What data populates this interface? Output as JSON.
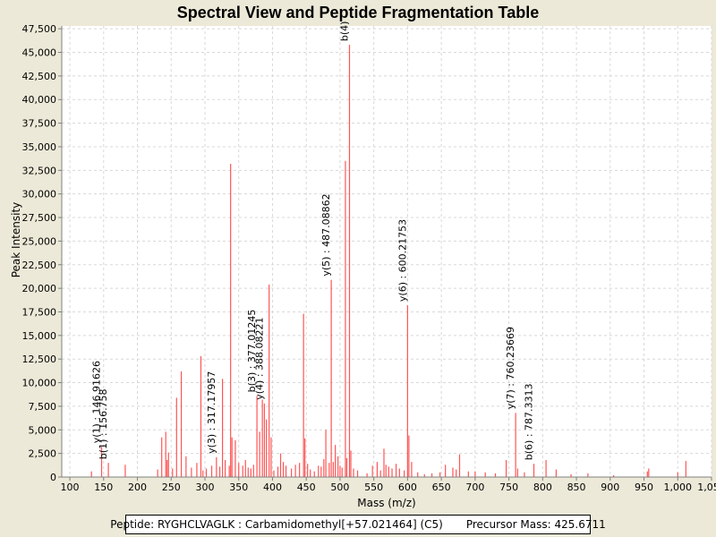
{
  "chart_data": {
    "type": "bar",
    "title": "Spectral View and Peptide Fragmentation Table",
    "xlabel": "Mass (m/z)",
    "ylabel": "Peak Intensity",
    "xlim": [
      88,
      1050
    ],
    "ylim": [
      0,
      47800
    ],
    "x_ticks": [
      100,
      150,
      200,
      250,
      300,
      350,
      400,
      450,
      500,
      550,
      600,
      650,
      700,
      750,
      800,
      850,
      900,
      950,
      1000,
      1050
    ],
    "x_tick_labels": [
      "100",
      "150",
      "200",
      "250",
      "300",
      "350",
      "400",
      "450",
      "500",
      "550",
      "600",
      "650",
      "700",
      "750",
      "800",
      "850",
      "900",
      "950",
      "1,000",
      "1,050"
    ],
    "y_ticks": [
      0,
      2500,
      5000,
      7500,
      10000,
      12500,
      15000,
      17500,
      20000,
      22500,
      25000,
      27500,
      30000,
      32500,
      35000,
      37500,
      40000,
      42500,
      45000,
      47500
    ],
    "y_tick_labels": [
      "0",
      "2,500",
      "5,000",
      "7,500",
      "10,000",
      "12,500",
      "15,000",
      "17,500",
      "20,000",
      "22,500",
      "25,000",
      "27,500",
      "30,000",
      "32,500",
      "35,000",
      "37,500",
      "40,000",
      "42,500",
      "45,000",
      "47,500"
    ],
    "grid": true,
    "peak_color": "#ff5555",
    "peaks": [
      {
        "x": 132,
        "y": 600
      },
      {
        "x": 147,
        "y": 3200
      },
      {
        "x": 157,
        "y": 1500
      },
      {
        "x": 182,
        "y": 1300
      },
      {
        "x": 230,
        "y": 800
      },
      {
        "x": 236,
        "y": 4200
      },
      {
        "x": 242,
        "y": 4800
      },
      {
        "x": 244,
        "y": 1800
      },
      {
        "x": 246,
        "y": 2600
      },
      {
        "x": 252,
        "y": 900
      },
      {
        "x": 258,
        "y": 8400
      },
      {
        "x": 265,
        "y": 11200
      },
      {
        "x": 272,
        "y": 2200
      },
      {
        "x": 280,
        "y": 1000
      },
      {
        "x": 288,
        "y": 1500
      },
      {
        "x": 294,
        "y": 12800
      },
      {
        "x": 297,
        "y": 700
      },
      {
        "x": 302,
        "y": 900
      },
      {
        "x": 310,
        "y": 1200
      },
      {
        "x": 317,
        "y": 2100
      },
      {
        "x": 322,
        "y": 1100
      },
      {
        "x": 326,
        "y": 10400
      },
      {
        "x": 330,
        "y": 1800
      },
      {
        "x": 336,
        "y": 1200
      },
      {
        "x": 338,
        "y": 33200
      },
      {
        "x": 340,
        "y": 4200
      },
      {
        "x": 345,
        "y": 3900
      },
      {
        "x": 350,
        "y": 1500
      },
      {
        "x": 356,
        "y": 1200
      },
      {
        "x": 360,
        "y": 1800
      },
      {
        "x": 364,
        "y": 1000
      },
      {
        "x": 368,
        "y": 900
      },
      {
        "x": 372,
        "y": 1300
      },
      {
        "x": 377,
        "y": 8600
      },
      {
        "x": 381,
        "y": 4800
      },
      {
        "x": 385,
        "y": 8200
      },
      {
        "x": 388,
        "y": 7800
      },
      {
        "x": 391,
        "y": 6100
      },
      {
        "x": 395,
        "y": 20400
      },
      {
        "x": 398,
        "y": 4200
      },
      {
        "x": 402,
        "y": 700
      },
      {
        "x": 408,
        "y": 1100
      },
      {
        "x": 412,
        "y": 2500
      },
      {
        "x": 416,
        "y": 1600
      },
      {
        "x": 420,
        "y": 1200
      },
      {
        "x": 428,
        "y": 900
      },
      {
        "x": 434,
        "y": 1300
      },
      {
        "x": 440,
        "y": 1500
      },
      {
        "x": 446,
        "y": 17300
      },
      {
        "x": 448,
        "y": 4100
      },
      {
        "x": 452,
        "y": 1400
      },
      {
        "x": 456,
        "y": 800
      },
      {
        "x": 462,
        "y": 600
      },
      {
        "x": 468,
        "y": 1200
      },
      {
        "x": 472,
        "y": 1100
      },
      {
        "x": 476,
        "y": 1900
      },
      {
        "x": 479,
        "y": 5000
      },
      {
        "x": 484,
        "y": 1500
      },
      {
        "x": 487,
        "y": 20900
      },
      {
        "x": 490,
        "y": 1600
      },
      {
        "x": 493,
        "y": 3400
      },
      {
        "x": 497,
        "y": 2200
      },
      {
        "x": 500,
        "y": 1200
      },
      {
        "x": 503,
        "y": 1000
      },
      {
        "x": 508,
        "y": 33500
      },
      {
        "x": 510,
        "y": 2000
      },
      {
        "x": 514,
        "y": 45800
      },
      {
        "x": 516,
        "y": 2800
      },
      {
        "x": 520,
        "y": 900
      },
      {
        "x": 526,
        "y": 700
      },
      {
        "x": 540,
        "y": 400
      },
      {
        "x": 548,
        "y": 1200
      },
      {
        "x": 555,
        "y": 1600
      },
      {
        "x": 560,
        "y": 700
      },
      {
        "x": 565,
        "y": 3000
      },
      {
        "x": 568,
        "y": 1300
      },
      {
        "x": 572,
        "y": 1100
      },
      {
        "x": 577,
        "y": 900
      },
      {
        "x": 583,
        "y": 1400
      },
      {
        "x": 588,
        "y": 900
      },
      {
        "x": 595,
        "y": 700
      },
      {
        "x": 600,
        "y": 18200
      },
      {
        "x": 602,
        "y": 4400
      },
      {
        "x": 606,
        "y": 1600
      },
      {
        "x": 615,
        "y": 500
      },
      {
        "x": 625,
        "y": 300
      },
      {
        "x": 636,
        "y": 400
      },
      {
        "x": 648,
        "y": 500
      },
      {
        "x": 656,
        "y": 1300
      },
      {
        "x": 667,
        "y": 1000
      },
      {
        "x": 672,
        "y": 800
      },
      {
        "x": 677,
        "y": 2400
      },
      {
        "x": 690,
        "y": 600
      },
      {
        "x": 700,
        "y": 600
      },
      {
        "x": 715,
        "y": 500
      },
      {
        "x": 730,
        "y": 400
      },
      {
        "x": 746,
        "y": 1800
      },
      {
        "x": 760,
        "y": 6800
      },
      {
        "x": 763,
        "y": 900
      },
      {
        "x": 773,
        "y": 500
      },
      {
        "x": 787,
        "y": 1400
      },
      {
        "x": 805,
        "y": 1800
      },
      {
        "x": 820,
        "y": 800
      },
      {
        "x": 842,
        "y": 300
      },
      {
        "x": 867,
        "y": 400
      },
      {
        "x": 905,
        "y": 200
      },
      {
        "x": 955,
        "y": 600
      },
      {
        "x": 957,
        "y": 900
      },
      {
        "x": 1000,
        "y": 500
      },
      {
        "x": 1012,
        "y": 1700
      }
    ],
    "annotations": [
      {
        "x": 147,
        "y": 3200,
        "text": "y(1) : 146.91626"
      },
      {
        "x": 157,
        "y": 1500,
        "text": "b(1) : 156.758"
      },
      {
        "x": 317,
        "y": 2100,
        "text": "y(3) : 317.17957"
      },
      {
        "x": 377,
        "y": 8600,
        "text": "b(3) : 377.01245"
      },
      {
        "x": 388,
        "y": 7800,
        "text": "y(4) : 388.08221"
      },
      {
        "x": 487,
        "y": 20900,
        "text": "y(5) : 487.08862"
      },
      {
        "x": 514,
        "y": 45800,
        "text": "b(4)"
      },
      {
        "x": 600,
        "y": 18200,
        "text": "y(6) : 600.21753"
      },
      {
        "x": 760,
        "y": 6800,
        "text": "y(7) : 760.23669"
      },
      {
        "x": 787,
        "y": 1400,
        "text": "b(6) : 787.3313"
      }
    ]
  },
  "footer": {
    "peptide": "Peptide: RYGHCLVAGLK : Carbamidomethyl[+57.021464] (C5)",
    "precursor": "Precursor Mass: 425.6711"
  }
}
